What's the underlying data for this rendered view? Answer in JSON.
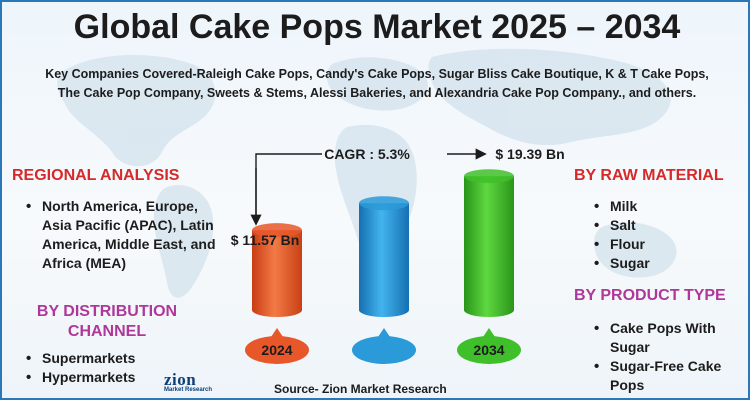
{
  "title": "Global Cake Pops Market 2025 – 2034",
  "subtitle": "Key Companies Covered-Raleigh Cake Pops, Candy's Cake Pops, Sugar Bliss Cake Boutique, K & T Cake Pops, The Cake Pop Company, Sweets & Stems, Alessi Bakeries, and Alexandria Cake Pop Company., and others.",
  "regional": {
    "title": "REGIONAL ANALYSIS",
    "items": [
      "North America, Europe, Asia Pacific (APAC), Latin America, Middle East, and Africa (MEA)"
    ]
  },
  "distribution": {
    "title": "BY DISTRIBUTION CHANNEL",
    "items": [
      "Supermarkets",
      "Hypermarkets"
    ]
  },
  "raw_material": {
    "title": "BY RAW MATERIAL",
    "items": [
      "Milk",
      "Salt",
      "Flour",
      "Sugar"
    ]
  },
  "product_type": {
    "title": "BY PRODUCT TYPE",
    "items": [
      "Cake Pops With Sugar",
      "Sugar-Free Cake Pops"
    ]
  },
  "source": "Source- Zion Market Research",
  "logo": {
    "name": "zion",
    "tagline": "Market Research"
  },
  "colors": {
    "bar_2024": "#e8572a",
    "bar_mid": "#2a9ad8",
    "bar_2034": "#3fbf2a",
    "section_red": "#d62a2a",
    "section_purple": "#b0379a",
    "border": "#2a78b8"
  },
  "chart_data": {
    "type": "bar",
    "categories": [
      "2024",
      "",
      "2034"
    ],
    "values": [
      11.57,
      null,
      19.39
    ],
    "value_labels": [
      "$ 11.57 Bn",
      "",
      "$ 19.39 Bn"
    ],
    "cagr_label": "CAGR : 5.3%",
    "units": "Bn"
  }
}
